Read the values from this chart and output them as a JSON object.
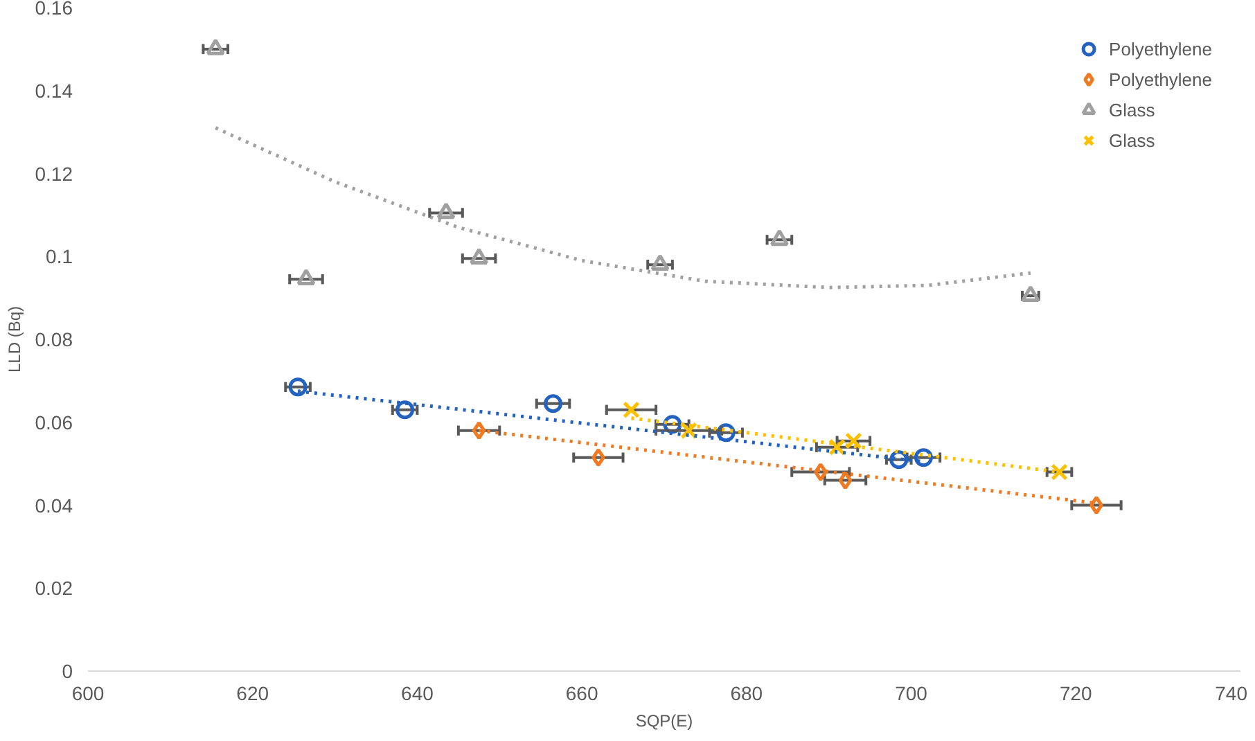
{
  "chart_data": {
    "type": "scatter",
    "xlabel": "SQP(E)",
    "ylabel": "LLD (Bq)",
    "xlim": [
      600,
      740
    ],
    "xticks": [
      600,
      620,
      640,
      660,
      680,
      700,
      720,
      740
    ],
    "ylim": [
      0,
      0.16
    ],
    "yticks": [
      0,
      0.02,
      0.04,
      0.06,
      0.08,
      0.1,
      0.12,
      0.14,
      0.16
    ],
    "grid": false,
    "legend": "top right",
    "series": [
      {
        "name": "Polyethylene",
        "color": "#2462c0",
        "marker": "circle",
        "x": [
          625.5,
          638.5,
          656.5,
          671,
          677.5,
          698.5,
          701.5
        ],
        "values": [
          0.0685,
          0.063,
          0.0645,
          0.0595,
          0.0575,
          0.051,
          0.0515
        ],
        "xerrors": [
          1.5,
          1.5,
          2,
          2,
          2,
          1.5,
          2
        ]
      },
      {
        "name": "Polyethylene",
        "color": "#f07a22",
        "marker": "diamond",
        "x": [
          647.5,
          662,
          689,
          692,
          722.5
        ],
        "values": [
          0.058,
          0.0515,
          0.048,
          0.046,
          0.04
        ],
        "xerrors": [
          2.5,
          3,
          3.5,
          2.5,
          3
        ]
      },
      {
        "name": "Glass",
        "color": "#a0a0a0",
        "marker": "triangle",
        "x": [
          615.5,
          626.5,
          643.5,
          647.5,
          669.5,
          684,
          714.5
        ],
        "values": [
          0.15,
          0.0945,
          0.1105,
          0.0995,
          0.098,
          0.104,
          0.0905
        ],
        "xerrors": [
          1.5,
          2,
          2,
          2,
          1.5,
          1.5,
          1
        ]
      },
      {
        "name": "Glass",
        "color": "#ffc000",
        "marker": "cross",
        "x": [
          666,
          673,
          691,
          693,
          718
        ],
        "values": [
          0.063,
          0.058,
          0.054,
          0.0555,
          0.048
        ],
        "xerrors": [
          3,
          4,
          2.5,
          2,
          1.5
        ]
      },
      {
        "type": "line",
        "color": "#2462c0",
        "line_style": "dotted",
        "x": [
          625.5,
          701.5
        ],
        "values": [
          0.0675,
          0.0505
        ]
      },
      {
        "type": "line",
        "color": "#f07a22",
        "line_style": "dotted",
        "x": [
          647.5,
          722.5
        ],
        "values": [
          0.058,
          0.0405
        ]
      },
      {
        "type": "line",
        "color": "#ffc000",
        "line_style": "dotted",
        "x": [
          666,
          718
        ],
        "values": [
          0.061,
          0.048
        ]
      },
      {
        "type": "line",
        "color": "#a0a0a0",
        "line_style": "dotted",
        "x": [
          615.5,
          630,
          645,
          660,
          675,
          690,
          702,
          714.5
        ],
        "values": [
          0.131,
          0.118,
          0.107,
          0.099,
          0.094,
          0.0925,
          0.093,
          0.096
        ]
      }
    ]
  }
}
